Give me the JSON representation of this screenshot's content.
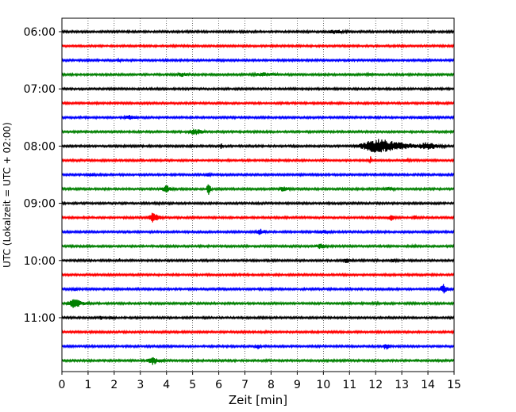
{
  "chart_data": {
    "type": "line",
    "xlabel": "Zeit  [min]",
    "ylabel": "UTC (Lokalzeit = UTC + 02:00)",
    "xlim": [
      0,
      15
    ],
    "x_ticks": [
      0,
      1,
      2,
      3,
      4,
      5,
      6,
      7,
      8,
      9,
      10,
      11,
      12,
      13,
      14,
      15
    ],
    "x_grid": "dotted",
    "y_tick_labels": [
      "06:00",
      "07:00",
      "08:00",
      "09:00",
      "10:00",
      "11:00"
    ],
    "colors": [
      "#000000",
      "#ff0000",
      "#0000ff",
      "#008000"
    ],
    "trace_minutes": 15,
    "series": [
      {
        "start": "06:00",
        "color": "#000000",
        "events": [
          {
            "t": 10.5,
            "amp": 0.35,
            "w": 0.6
          }
        ]
      },
      {
        "start": "06:15",
        "color": "#ff0000",
        "events": []
      },
      {
        "start": "06:30",
        "color": "#0000ff",
        "events": [
          {
            "t": 2.2,
            "amp": 0.2,
            "w": 0.3
          }
        ]
      },
      {
        "start": "06:45",
        "color": "#008000",
        "events": [
          {
            "t": 4.6,
            "amp": 0.35,
            "w": 0.4
          },
          {
            "t": 7.8,
            "amp": 0.3,
            "w": 1.0
          },
          {
            "t": 11.8,
            "amp": 0.2,
            "w": 0.5
          }
        ]
      },
      {
        "start": "07:00",
        "color": "#000000",
        "events": []
      },
      {
        "start": "07:15",
        "color": "#ff0000",
        "events": [
          {
            "t": 4.0,
            "amp": 0.15,
            "w": 0.4
          }
        ]
      },
      {
        "start": "07:30",
        "color": "#0000ff",
        "events": [
          {
            "t": 2.6,
            "amp": 0.35,
            "w": 0.5
          },
          {
            "t": 13.7,
            "amp": 0.25,
            "w": 0.2
          }
        ]
      },
      {
        "start": "07:45",
        "color": "#008000",
        "events": [
          {
            "t": 5.1,
            "amp": 0.45,
            "w": 0.5
          }
        ]
      },
      {
        "start": "08:00",
        "color": "#000000",
        "events": [
          {
            "t": 6.1,
            "amp": 0.5,
            "w": 0.05
          },
          {
            "t": 12.2,
            "amp": 1.0,
            "w": 1.3
          },
          {
            "t": 14.0,
            "amp": 0.55,
            "w": 0.7
          }
        ]
      },
      {
        "start": "08:15",
        "color": "#ff0000",
        "events": [
          {
            "t": 11.8,
            "amp": 0.9,
            "w": 0.05
          },
          {
            "t": 13.2,
            "amp": 0.2,
            "w": 0.5
          }
        ]
      },
      {
        "start": "08:30",
        "color": "#0000ff",
        "events": [
          {
            "t": 1.1,
            "amp": 0.3,
            "w": 0.3
          },
          {
            "t": 5.6,
            "amp": 0.25,
            "w": 0.3
          }
        ]
      },
      {
        "start": "08:45",
        "color": "#008000",
        "events": [
          {
            "t": 4.0,
            "amp": 0.5,
            "w": 0.4
          },
          {
            "t": 5.6,
            "amp": 1.0,
            "w": 0.1
          },
          {
            "t": 8.5,
            "amp": 0.35,
            "w": 0.5
          },
          {
            "t": 12.5,
            "amp": 0.3,
            "w": 0.5
          }
        ]
      },
      {
        "start": "09:00",
        "color": "#000000",
        "events": [
          {
            "t": 3.7,
            "amp": 0.2,
            "w": 0.4
          }
        ]
      },
      {
        "start": "09:15",
        "color": "#ff0000",
        "events": [
          {
            "t": 3.5,
            "amp": 0.75,
            "w": 0.3
          },
          {
            "t": 12.6,
            "amp": 0.5,
            "w": 0.2
          },
          {
            "t": 13.5,
            "amp": 0.45,
            "w": 0.08
          }
        ]
      },
      {
        "start": "09:30",
        "color": "#0000ff",
        "events": [
          {
            "t": 7.6,
            "amp": 0.45,
            "w": 0.3
          },
          {
            "t": 10.0,
            "amp": 0.3,
            "w": 0.5
          }
        ]
      },
      {
        "start": "09:45",
        "color": "#008000",
        "events": [
          {
            "t": 9.9,
            "amp": 0.4,
            "w": 0.4
          },
          {
            "t": 13.5,
            "amp": 0.2,
            "w": 0.4
          }
        ]
      },
      {
        "start": "10:00",
        "color": "#000000",
        "events": [
          {
            "t": 2.2,
            "amp": 0.35,
            "w": 0.05
          },
          {
            "t": 10.9,
            "amp": 0.4,
            "w": 0.3
          },
          {
            "t": 12.7,
            "amp": 0.25,
            "w": 0.3
          }
        ]
      },
      {
        "start": "10:15",
        "color": "#ff0000",
        "events": []
      },
      {
        "start": "10:30",
        "color": "#0000ff",
        "events": [
          {
            "t": 0.5,
            "amp": 0.3,
            "w": 0.3
          },
          {
            "t": 14.6,
            "amp": 0.75,
            "w": 0.2
          }
        ]
      },
      {
        "start": "10:45",
        "color": "#008000",
        "events": [
          {
            "t": 0.5,
            "amp": 0.65,
            "w": 0.5
          },
          {
            "t": 12.0,
            "amp": 0.2,
            "w": 0.4
          }
        ]
      },
      {
        "start": "11:00",
        "color": "#000000",
        "events": [
          {
            "t": 1.5,
            "amp": 0.35,
            "w": 0.1
          },
          {
            "t": 1.9,
            "amp": 0.3,
            "w": 0.2
          }
        ]
      },
      {
        "start": "11:15",
        "color": "#ff0000",
        "events": [
          {
            "t": 7.8,
            "amp": 0.15,
            "w": 0.4
          }
        ]
      },
      {
        "start": "11:30",
        "color": "#0000ff",
        "events": [
          {
            "t": 7.5,
            "amp": 0.4,
            "w": 0.2
          },
          {
            "t": 12.4,
            "amp": 0.5,
            "w": 0.2
          }
        ]
      },
      {
        "start": "11:45",
        "color": "#008000",
        "events": [
          {
            "t": 3.5,
            "amp": 0.6,
            "w": 0.4
          }
        ]
      }
    ]
  }
}
